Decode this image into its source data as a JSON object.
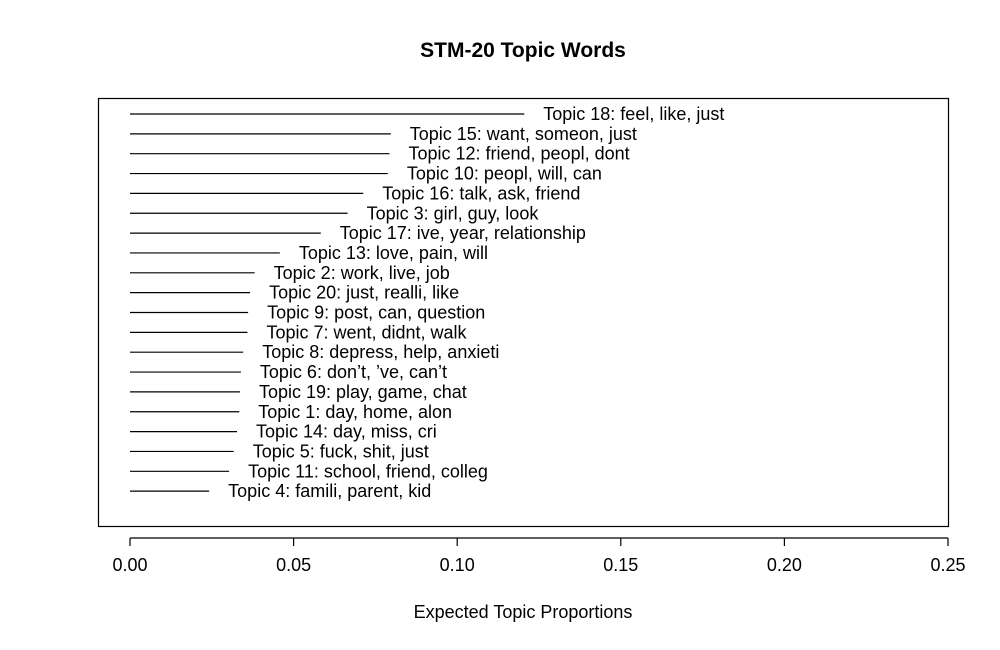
{
  "chart_data": {
    "type": "bar",
    "orientation": "horizontal",
    "title": "STM-20 Topic Words",
    "xlabel": "Expected Topic Proportions",
    "ylabel": "",
    "xlim": [
      0,
      0.25
    ],
    "xticks": [
      "0.00",
      "0.05",
      "0.10",
      "0.15",
      "0.20",
      "0.25"
    ],
    "grid": false,
    "categories": [
      "Topic 18: feel, like, just",
      "Topic 15: want, someon, just",
      "Topic 12: friend, peopl, dont",
      "Topic 10: peopl, will, can",
      "Topic 16: talk, ask, friend",
      "Topic 3: girl, guy, look",
      "Topic 17: ive, year, relationship",
      "Topic 13: love, pain, will",
      "Topic 2: work, live, job",
      "Topic 20: just, realli, like",
      "Topic 9: post, can, question",
      "Topic 7: went, didnt, walk",
      "Topic 8: depress, help, anxieti",
      "Topic 6: don’t, ’ve, can’t",
      "Topic 19: play, game, chat",
      "Topic 1: day, home, alon",
      "Topic 14: day, miss, cri",
      "Topic 5: fuck, shit, just",
      "Topic 11: school, friend, colleg",
      "Topic 4: famili, parent, kid"
    ],
    "values": [
      0.1205,
      0.0797,
      0.0793,
      0.0788,
      0.0713,
      0.0665,
      0.0583,
      0.0458,
      0.0381,
      0.0367,
      0.0361,
      0.0359,
      0.0346,
      0.0339,
      0.0336,
      0.0334,
      0.0327,
      0.0317,
      0.0303,
      0.0242
    ]
  }
}
